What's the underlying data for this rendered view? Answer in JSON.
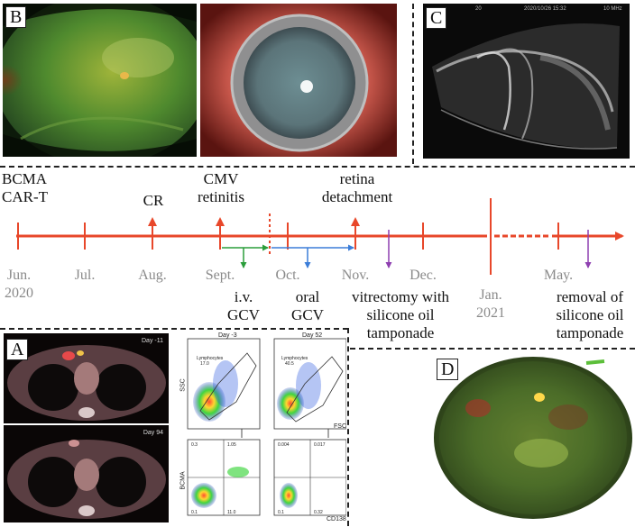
{
  "panels": {
    "B": "B",
    "C": "C",
    "A": "A",
    "D": "D"
  },
  "ultrasound": {
    "left": "20",
    "date": "2020/10/26 15:32",
    "freq": "10 MHz"
  },
  "timeline": {
    "events": {
      "car_t": [
        "BCMA",
        "CAR-T"
      ],
      "cr": "CR",
      "cmv": [
        "CMV",
        "retinitis"
      ],
      "detach": [
        "retina",
        "detachment"
      ]
    },
    "months": {
      "jun": [
        "Jun.",
        "2020"
      ],
      "jul": "Jul.",
      "aug": "Aug.",
      "sept": "Sept.",
      "oct": "Oct.",
      "nov": "Nov.",
      "dec": "Dec.",
      "jan": [
        "Jan.",
        "2021"
      ],
      "may": "May."
    },
    "treatments": {
      "iv_gcv": [
        "i.v.",
        "GCV"
      ],
      "oral_gcv": [
        "oral",
        "GCV"
      ],
      "vitrectomy": [
        "vitrectomy with",
        "silicone oil",
        "tamponade"
      ],
      "removal": [
        "removal of",
        "silicone oil",
        "tamponade"
      ]
    }
  },
  "ct": {
    "day1": "Day -11",
    "day2": "Day 94"
  },
  "flow": {
    "day_a": "Day -3",
    "day_b": "Day 52",
    "gate_a": "Lymphocytes",
    "gate_b": "Lymphocytes",
    "gate_a_pct": "17.0",
    "gate_b_pct": "40.5",
    "ssc": "SSC",
    "fsc": "FSC",
    "bcma": "BCMA",
    "cd138": "CD138",
    "q_a": [
      "0.3",
      "1.05",
      "0.1",
      "11.0"
    ],
    "q_b": [
      "0.004",
      "0.017",
      "0.1",
      "0.32"
    ]
  },
  "colors": {
    "timeline": "#e8472a",
    "green_arrow": "#2a9d3a",
    "blue_arrow": "#3b7dd8",
    "purple_arrow": "#8e3fb0"
  }
}
